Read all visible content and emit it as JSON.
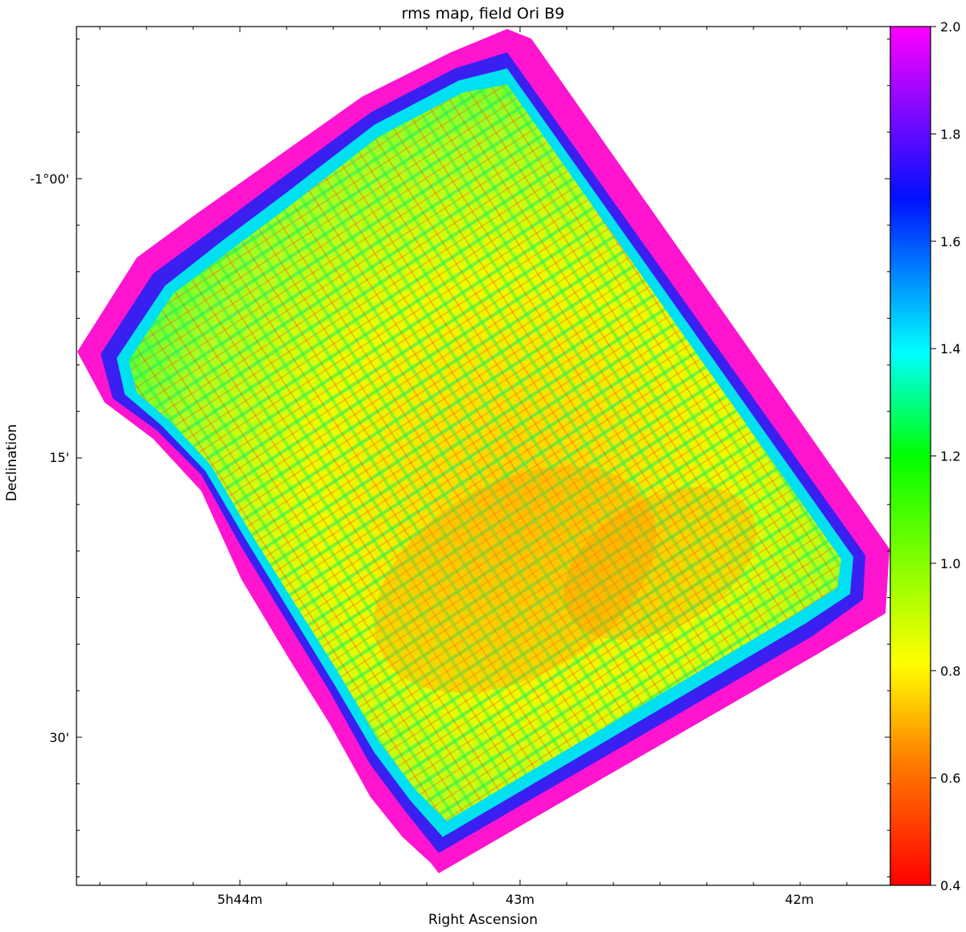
{
  "chart_data": {
    "type": "heatmap",
    "title": "rms map, field Ori B9",
    "xlabel": "Right Ascension",
    "ylabel": "Declination",
    "x_ticks": [
      "5h44m",
      "43m",
      "42m"
    ],
    "y_ticks": [
      "-1°00'",
      "15'",
      "30'"
    ],
    "colorbar": {
      "min": 0.4,
      "max": 2.0,
      "ticks": [
        "0.4",
        "0.6",
        "0.8",
        "1.0",
        "1.2",
        "1.4",
        "1.6",
        "1.8",
        "2.0"
      ],
      "colormap": "gist_rainbow_r",
      "stops": [
        "#ff0000",
        "#ff8000",
        "#ffff00",
        "#00ff00",
        "#00ffff",
        "#0000ff",
        "#ff00ff"
      ]
    },
    "map_summary": {
      "field_interior_rms": 0.8,
      "field_edge_rms": 2.0,
      "note_colors": {
        "low": "#ff0000",
        "mid": "#ffff00",
        "high": "#ff00ff"
      }
    }
  }
}
